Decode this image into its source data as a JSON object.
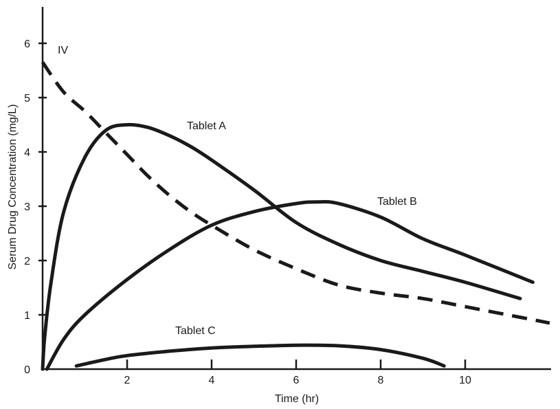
{
  "chart_data": {
    "type": "line",
    "title": "",
    "xlabel": "Time (hr)",
    "ylabel": "Serum Drug Concentration (mg/L)",
    "xlim": [
      0,
      12
    ],
    "ylim": [
      0,
      6.6
    ],
    "x_ticks": [
      2,
      4,
      6,
      8,
      10
    ],
    "y_ticks": [
      0,
      1,
      2,
      3,
      4,
      5,
      6
    ],
    "grid": false,
    "legend": "none (series labeled directly on chart)",
    "series": [
      {
        "name": "IV",
        "style": "dashed",
        "color": "#1a1a1a",
        "x": [
          0,
          0.5,
          1,
          1.5,
          2,
          2.5,
          3,
          3.5,
          4,
          5,
          6,
          7,
          8,
          9,
          10,
          11,
          12
        ],
        "y": [
          5.65,
          5.1,
          4.75,
          4.35,
          3.95,
          3.55,
          3.2,
          2.9,
          2.65,
          2.2,
          1.85,
          1.55,
          1.4,
          1.3,
          1.15,
          1.0,
          0.85
        ]
      },
      {
        "name": "Tablet A",
        "style": "solid",
        "color": "#1a1a1a",
        "x": [
          0,
          0.05,
          0.2,
          0.5,
          1,
          1.5,
          2,
          2.5,
          3,
          3.5,
          4,
          5,
          6,
          7,
          8,
          9,
          10,
          11.3
        ],
        "y": [
          0,
          0.6,
          1.6,
          2.9,
          3.9,
          4.4,
          4.5,
          4.45,
          4.3,
          4.1,
          3.85,
          3.3,
          2.7,
          2.3,
          2.0,
          1.8,
          1.6,
          1.3
        ]
      },
      {
        "name": "Tablet B",
        "style": "solid",
        "color": "#1a1a1a",
        "x": [
          0.1,
          0.5,
          1,
          2,
          3,
          4,
          5,
          6,
          6.5,
          7,
          8,
          9,
          10,
          11.6
        ],
        "y": [
          0,
          0.55,
          1.0,
          1.65,
          2.2,
          2.65,
          2.9,
          3.05,
          3.08,
          3.05,
          2.8,
          2.4,
          2.1,
          1.6
        ]
      },
      {
        "name": "Tablet C",
        "style": "solid",
        "color": "#1a1a1a",
        "x": [
          0.8,
          1.5,
          2,
          3,
          4,
          5,
          6,
          7,
          8,
          9,
          9.5
        ],
        "y": [
          0.06,
          0.18,
          0.25,
          0.33,
          0.39,
          0.42,
          0.44,
          0.43,
          0.36,
          0.2,
          0.06
        ]
      }
    ]
  }
}
